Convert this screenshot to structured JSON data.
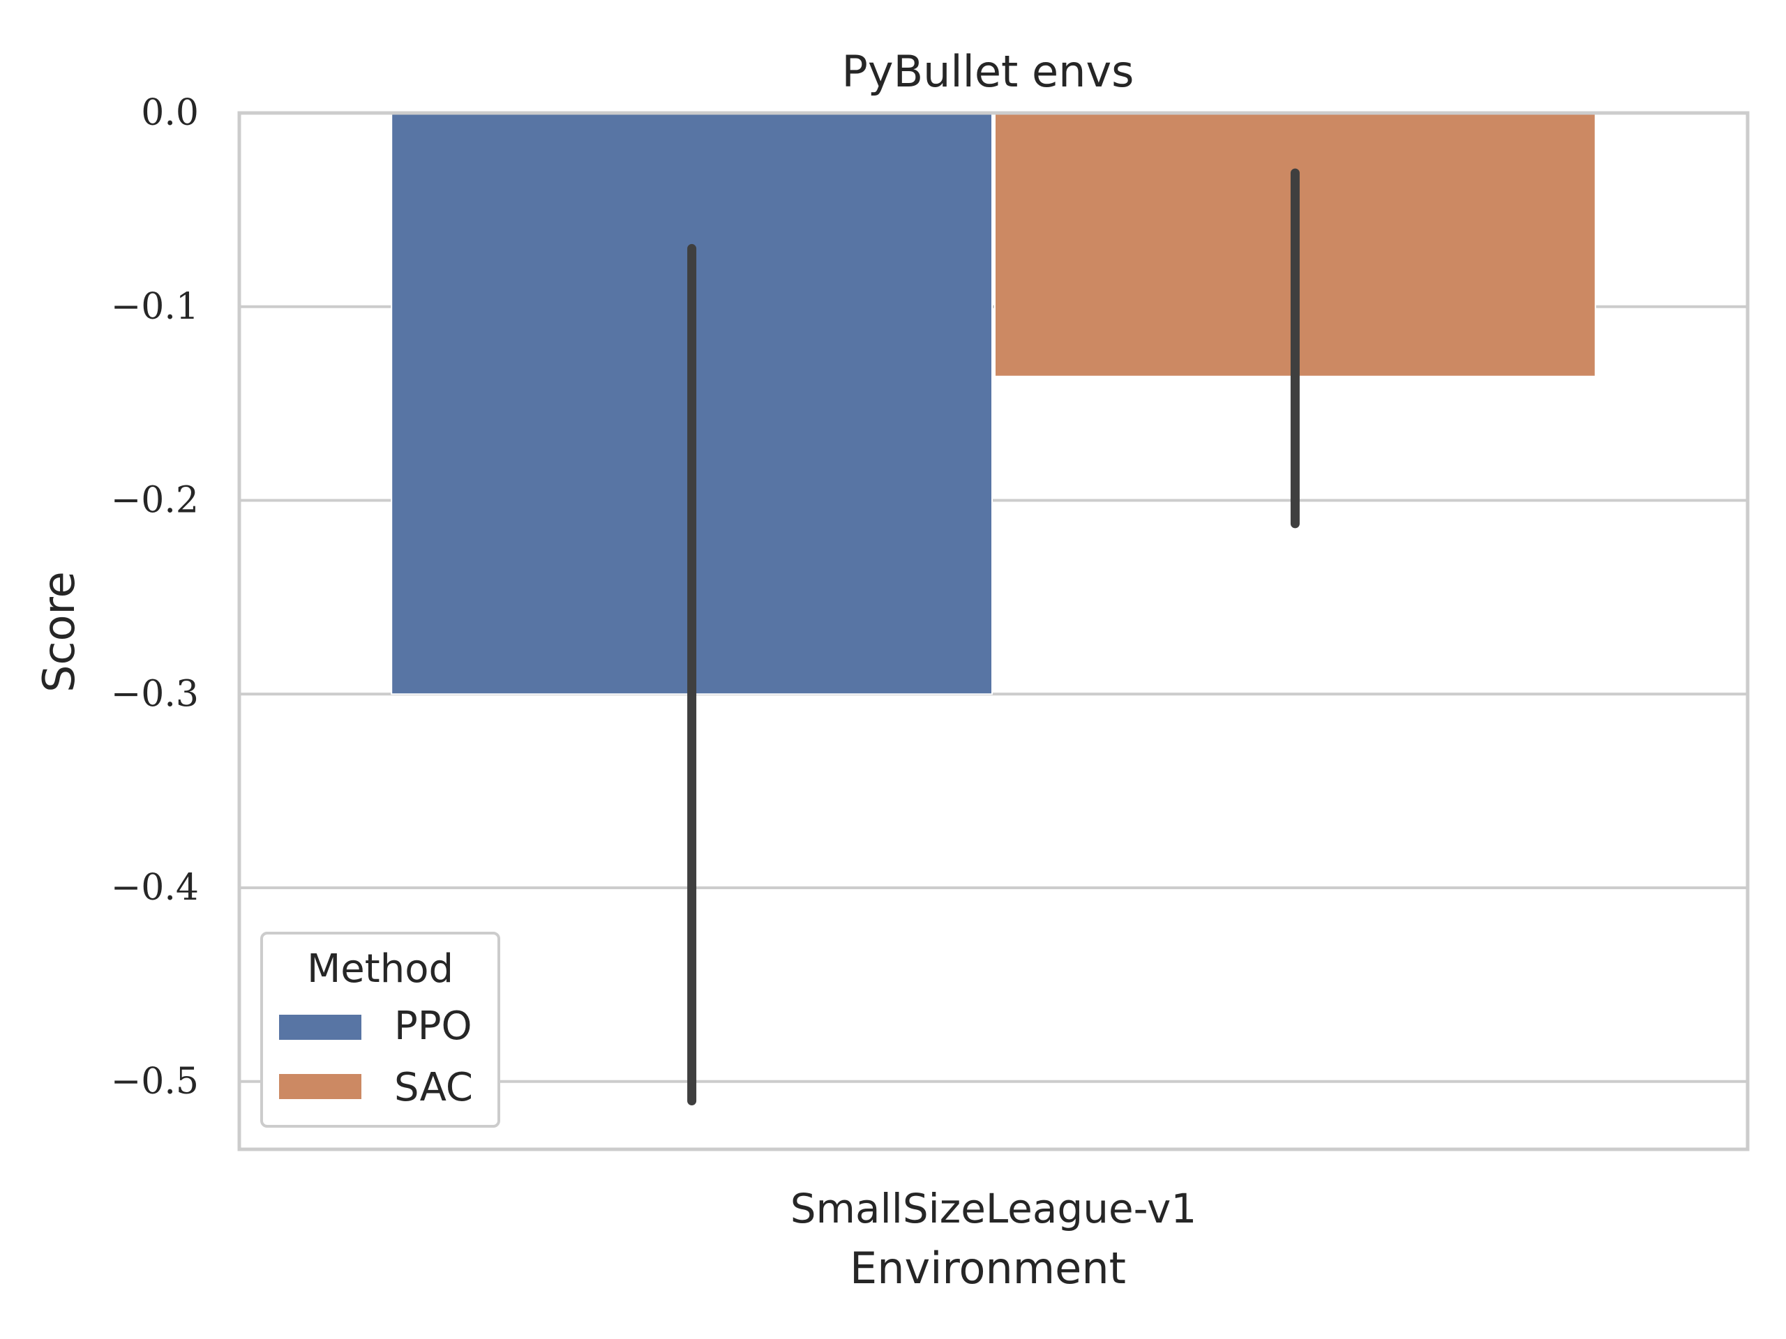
{
  "chart_data": {
    "type": "bar",
    "title": "PyBullet envs",
    "xlabel": "Environment",
    "ylabel": "Score",
    "categories": [
      "SmallSizeLeague-v1"
    ],
    "ylim": [
      -0.535,
      0.0
    ],
    "yticks": [
      0.0,
      -0.1,
      -0.2,
      -0.3,
      -0.4,
      -0.5
    ],
    "ytick_labels": [
      "0.0",
      "−0.1",
      "−0.2",
      "−0.3",
      "−0.4",
      "−0.5"
    ],
    "grid": true,
    "legend": {
      "title": "Method",
      "position": "bottom-left"
    },
    "series": [
      {
        "name": "PPO",
        "color": "#5875a4",
        "values": [
          -0.3
        ],
        "error_low": [
          -0.51
        ],
        "error_high": [
          -0.07
        ]
      },
      {
        "name": "SAC",
        "color": "#cc8963",
        "values": [
          -0.136
        ],
        "error_low": [
          -0.212
        ],
        "error_high": [
          -0.031
        ]
      }
    ],
    "error_bar_color": "#3f3f3f"
  }
}
